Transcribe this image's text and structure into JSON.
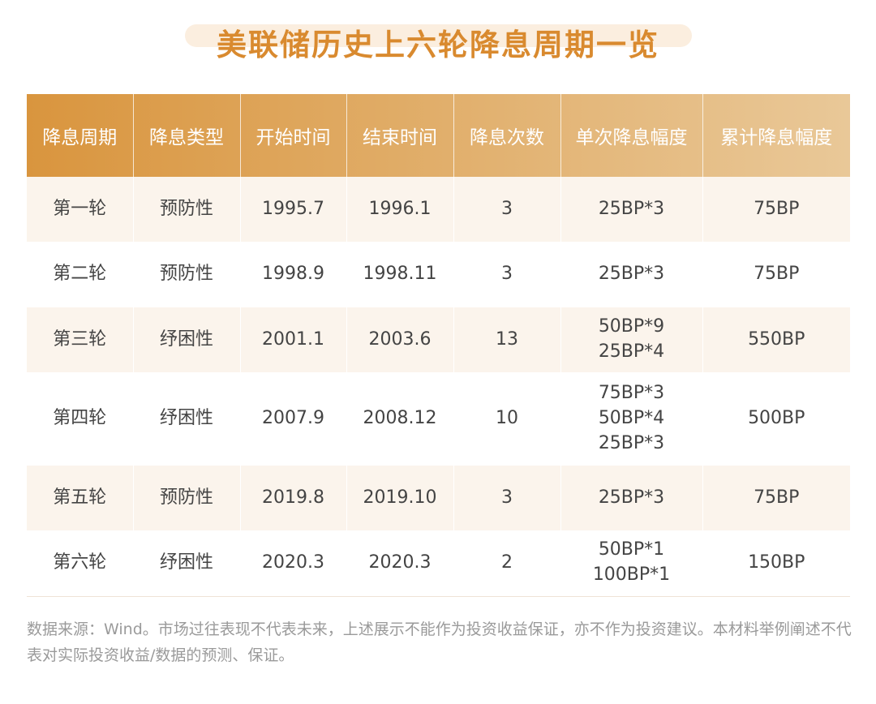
{
  "title": "美联储历史上六轮降息周期一览",
  "headers": [
    "降息周期",
    "降息类型",
    "开始时间",
    "结束时间",
    "降息次数",
    "单次降息幅度",
    "累计降息幅度"
  ],
  "rows": [
    {
      "cycle": "第一轮",
      "type": "预防性",
      "start": "1995.7",
      "end": "1996.1",
      "count": "3",
      "single": [
        "25BP*3"
      ],
      "total": "75BP"
    },
    {
      "cycle": "第二轮",
      "type": "预防性",
      "start": "1998.9",
      "end": "1998.11",
      "count": "3",
      "single": [
        "25BP*3"
      ],
      "total": "75BP"
    },
    {
      "cycle": "第三轮",
      "type": "纾困性",
      "start": "2001.1",
      "end": "2003.6",
      "count": "13",
      "single": [
        "50BP*9",
        "25BP*4"
      ],
      "total": "550BP"
    },
    {
      "cycle": "第四轮",
      "type": "纾困性",
      "start": "2007.9",
      "end": "2008.12",
      "count": "10",
      "single": [
        "75BP*3",
        "50BP*4",
        "25BP*3"
      ],
      "total": "500BP"
    },
    {
      "cycle": "第五轮",
      "type": "预防性",
      "start": "2019.8",
      "end": "2019.10",
      "count": "3",
      "single": [
        "25BP*3"
      ],
      "total": "75BP"
    },
    {
      "cycle": "第六轮",
      "type": "纾困性",
      "start": "2020.3",
      "end": "2020.3",
      "count": "2",
      "single": [
        "50BP*1",
        "100BP*1"
      ],
      "total": "150BP"
    }
  ],
  "note": "数据来源：Wind。市场过往表现不代表未来，上述展示不能作为投资收益保证，亦不作为投资建议。本材料举例阐述不代表对实际投资收益/数据的预测、保证。"
}
